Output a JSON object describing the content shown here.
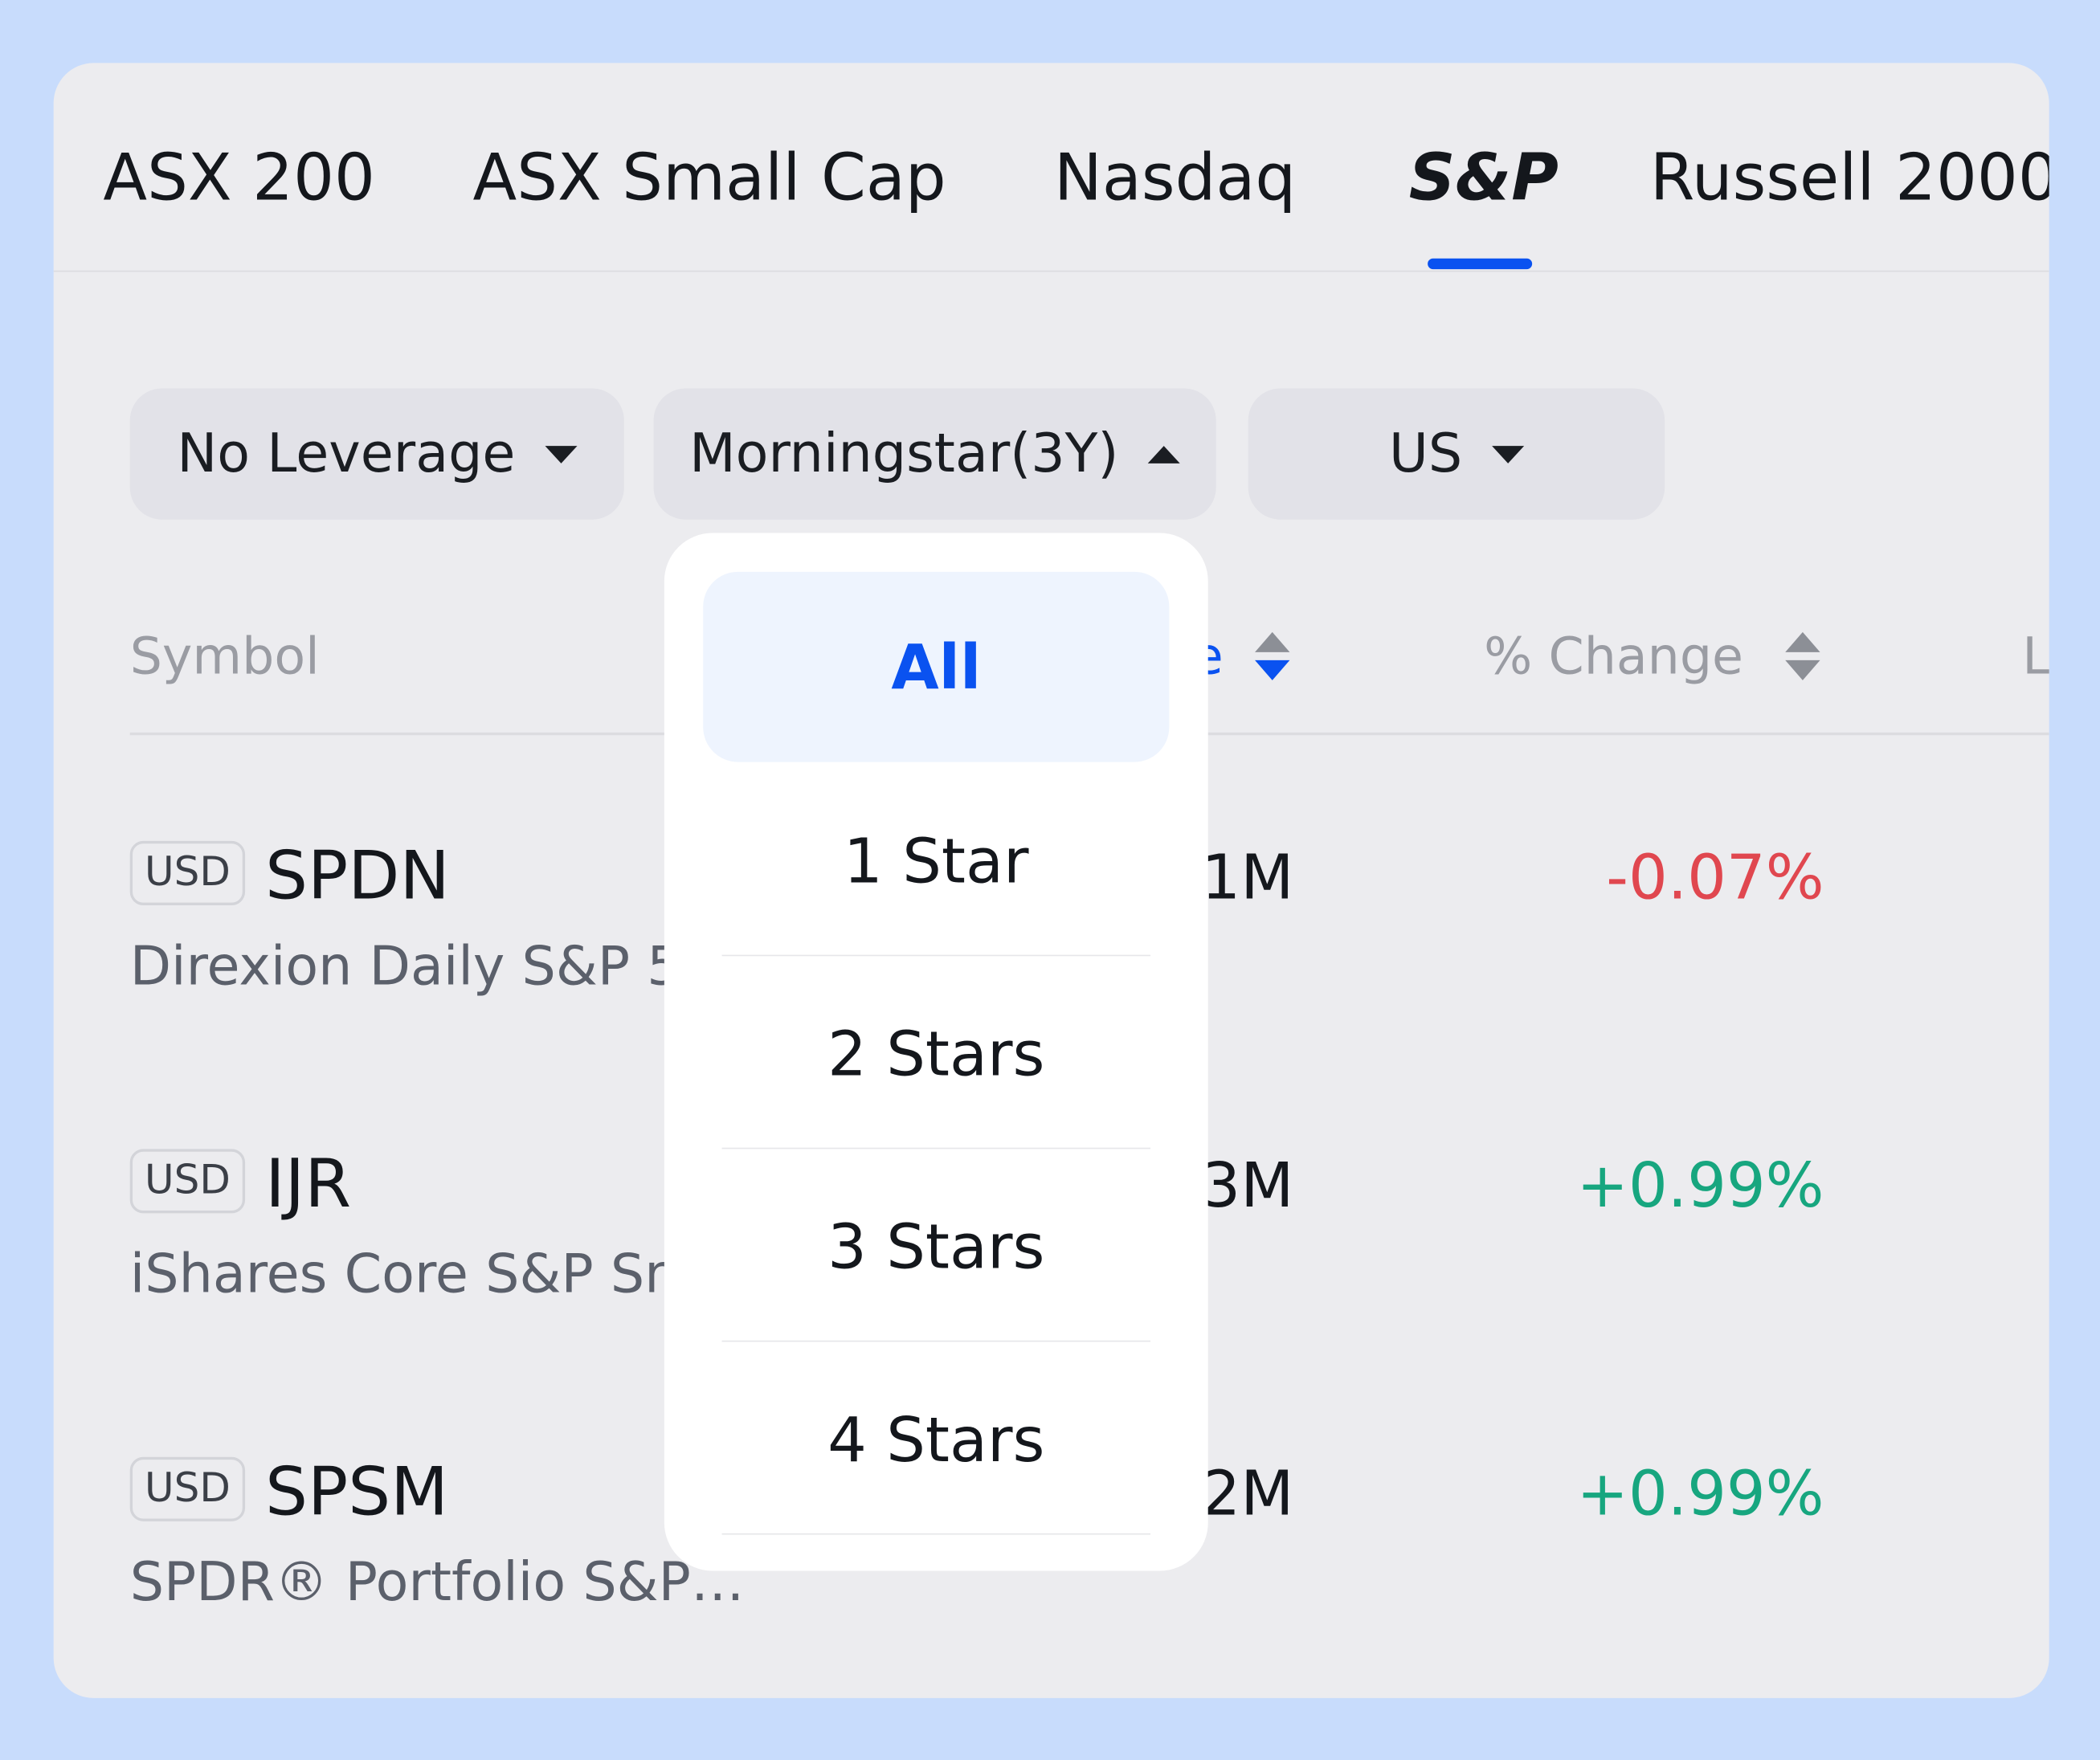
{
  "tabs": [
    {
      "label": "ASX 200"
    },
    {
      "label": "ASX Small Cap"
    },
    {
      "label": "Nasdaq"
    },
    {
      "label": "S&P",
      "active": true
    },
    {
      "label": "Russell 2000"
    }
  ],
  "filters": [
    {
      "label": "No Leverage",
      "state": "collapsed"
    },
    {
      "label": "Morningstar(3Y)",
      "state": "expanded"
    },
    {
      "label": "US",
      "state": "collapsed"
    }
  ],
  "table": {
    "headers": {
      "symbol": "Symbol",
      "volume_partial": "e",
      "change": "% Change",
      "last_partial": "L"
    },
    "rows": [
      {
        "currency": "USD",
        "ticker": "SPDN",
        "name": "Direxion Daily S&P 5",
        "volume": "1M",
        "change": "-0.07%",
        "direction": "down"
      },
      {
        "currency": "USD",
        "ticker": "IJR",
        "name": "iShares Core S&P Sm",
        "volume": "3M",
        "change": "+0.99%",
        "direction": "up"
      },
      {
        "currency": "USD",
        "ticker": "SPSM",
        "name": "SPDR® Portfolio S&P…",
        "volume": "2M",
        "change": "+0.99%",
        "direction": "up"
      }
    ]
  },
  "dropdown": {
    "options": [
      {
        "label": "All",
        "selected": true
      },
      {
        "label": "1 Star"
      },
      {
        "label": "2 Stars"
      },
      {
        "label": "3 Stars"
      },
      {
        "label": "4 Stars"
      }
    ]
  },
  "colors": {
    "accent": "#0a52f0",
    "up": "#17a67f",
    "down": "#e0474f",
    "background": "#c8dcfc"
  }
}
